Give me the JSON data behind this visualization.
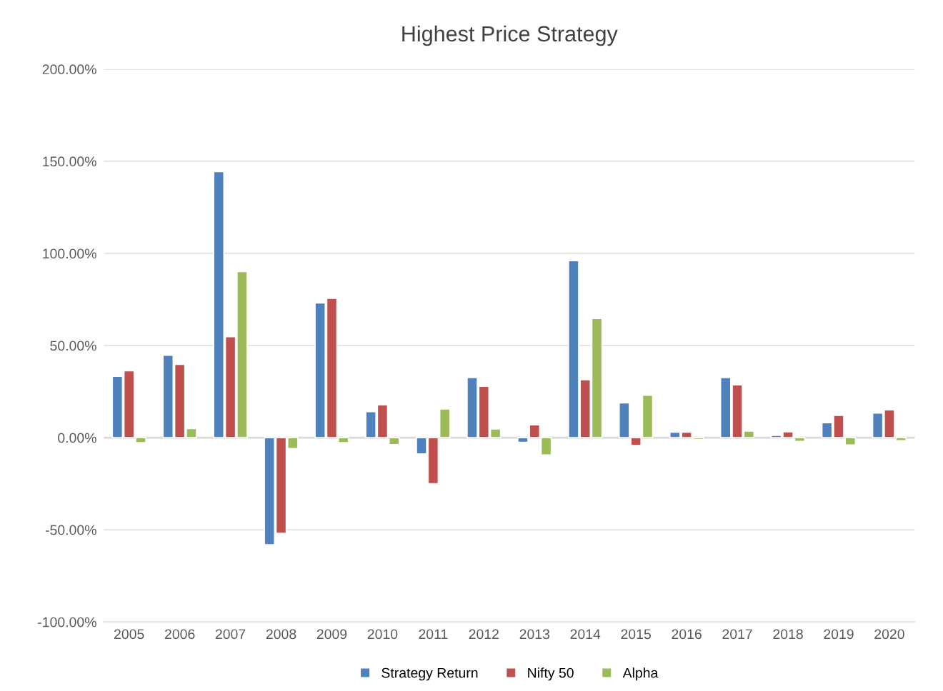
{
  "chart_data": {
    "type": "bar",
    "title": "Highest Price Strategy",
    "categories": [
      "2005",
      "2006",
      "2007",
      "2008",
      "2009",
      "2010",
      "2011",
      "2012",
      "2013",
      "2014",
      "2015",
      "2016",
      "2017",
      "2018",
      "2019",
      "2020"
    ],
    "series": [
      {
        "name": "Strategy Return",
        "color": "#4f81bd",
        "values": [
          33.3,
          44.7,
          144.4,
          -58.1,
          73.1,
          14.1,
          -8.8,
          32.6,
          -2.5,
          96,
          18.8,
          3,
          32.6,
          1.2,
          8.1,
          13.3
        ]
      },
      {
        "name": "Nifty 50",
        "color": "#c0504d",
        "values": [
          36.3,
          39.8,
          54.8,
          -51.9,
          75.6,
          17.8,
          -25,
          27.9,
          6.9,
          31.4,
          -4.2,
          3,
          28.6,
          3.2,
          12.1,
          15.1
        ]
      },
      {
        "name": "Alpha",
        "color": "#9bbb59",
        "values": [
          -2.7,
          4.9,
          90.1,
          -5.9,
          -2.7,
          -3.8,
          15.6,
          4.7,
          -9.4,
          64.7,
          23,
          -1,
          3.5,
          -2,
          -4,
          -1.7
        ]
      }
    ],
    "ylim": [
      -100,
      200
    ],
    "yticks": [
      {
        "value": -100,
        "label": "-100.00%"
      },
      {
        "value": -50,
        "label": "-50.00%"
      },
      {
        "value": 0,
        "label": "0.00%"
      },
      {
        "value": 50,
        "label": "50.00%"
      },
      {
        "value": 100,
        "label": "100.00%"
      },
      {
        "value": 150,
        "label": "150.00%"
      },
      {
        "value": 200,
        "label": "200.00%"
      }
    ],
    "grid": "y",
    "legend": "bottom"
  }
}
